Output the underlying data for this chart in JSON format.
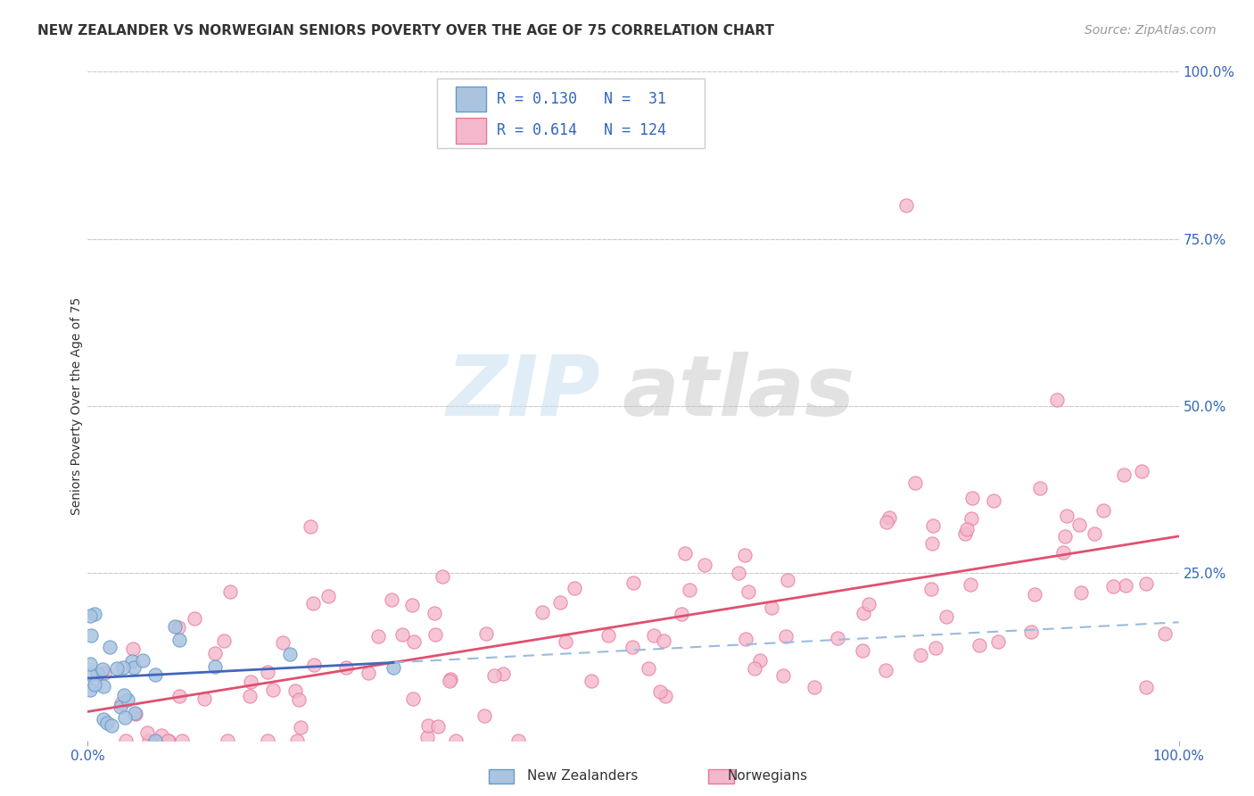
{
  "title": "NEW ZEALANDER VS NORWEGIAN SENIORS POVERTY OVER THE AGE OF 75 CORRELATION CHART",
  "source": "Source: ZipAtlas.com",
  "ylabel": "Seniors Poverty Over the Age of 75",
  "background_color": "#ffffff",
  "grid_color": "#cccccc",
  "nz_dot_color": "#aac4e0",
  "nz_edge_color": "#6699cc",
  "nz_line_color": "#4466bb",
  "nor_dot_color": "#f4b8cc",
  "nor_edge_color": "#e87898",
  "nor_line_color": "#e05070",
  "dash_color": "#99bbdd",
  "nz_R": 0.13,
  "nz_N": 31,
  "nor_R": 0.614,
  "nor_N": 124,
  "xlim": [
    0,
    100
  ],
  "ylim": [
    0,
    100
  ],
  "title_fontsize": 11,
  "axis_label_fontsize": 10,
  "tick_fontsize": 11,
  "source_fontsize": 10,
  "nz_seed": 17,
  "nor_seed": 42
}
